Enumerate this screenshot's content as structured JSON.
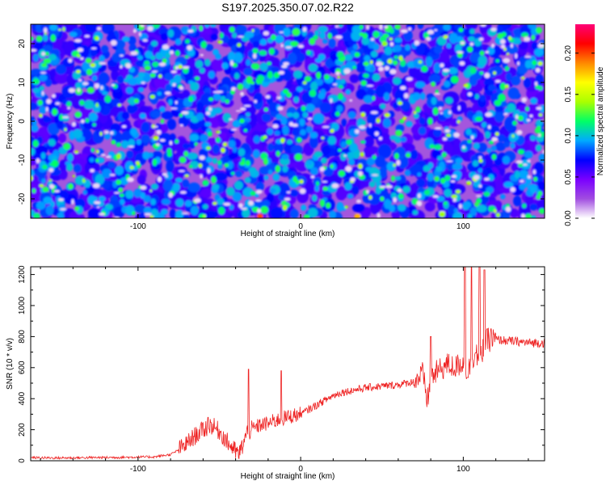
{
  "title": "S197.2025.350.07.02.R22",
  "chart_data": [
    {
      "type": "heatmap",
      "xlabel": "Height of straight line (km)",
      "ylabel": "Frequency (Hz)",
      "xlim": [
        -166,
        150
      ],
      "ylim": [
        -25,
        25
      ],
      "x_ticks": [
        -100,
        0,
        100
      ],
      "y_ticks": [
        -20,
        -10,
        0,
        10,
        20
      ],
      "colorbar": {
        "label": "Normalized spectral amplitude",
        "range": [
          0.0,
          0.235
        ],
        "ticks": [
          "0.00",
          "0.05",
          "0.10",
          "0.15",
          "0.20"
        ],
        "tick_values": [
          0.0,
          0.05,
          0.1,
          0.15,
          0.2
        ],
        "colormap": [
          "#ffffff",
          "#a14ee0",
          "#7a00ff",
          "#0000ff",
          "#00aaff",
          "#00ff66",
          "#aaff00",
          "#ffff00",
          "#ff8800",
          "#ff0000",
          "#ff0077"
        ]
      },
      "hot_spots": [
        {
          "x": -25,
          "y": -24.5,
          "value": 0.2
        },
        {
          "x": 35,
          "y": -24.5,
          "value": 0.18
        },
        {
          "x": 87,
          "y": -24,
          "value": 0.14
        },
        {
          "x": 140,
          "y": -24.5,
          "value": 0.12
        },
        {
          "x": -90,
          "y": 20,
          "value": 0.1
        }
      ]
    },
    {
      "type": "line",
      "xlabel": "Height of straight line (km)",
      "ylabel": "SNR (10 * v/v)",
      "xlim": [
        -166,
        150
      ],
      "ylim": [
        0,
        1250
      ],
      "x_ticks": [
        -100,
        0,
        100
      ],
      "y_ticks": [
        0,
        200,
        400,
        600,
        800,
        1000,
        1200
      ],
      "color": "#ee2222",
      "series": [
        {
          "x": [
            -166,
            -150,
            -130,
            -110,
            -90,
            -80,
            -75,
            -70,
            -65,
            -60,
            -55,
            -50,
            -45,
            -40,
            -38,
            -36,
            -33,
            -30,
            -25,
            -20,
            -15,
            -10,
            -5,
            0,
            5,
            10,
            15,
            20,
            25,
            30,
            40,
            50,
            60,
            70,
            75,
            78,
            80,
            85,
            90,
            95,
            100,
            103,
            105,
            108,
            110,
            112,
            115,
            120,
            130,
            140,
            150
          ],
          "y": [
            20,
            18,
            20,
            22,
            25,
            40,
            70,
            110,
            160,
            200,
            230,
            190,
            120,
            60,
            40,
            90,
            180,
            200,
            230,
            240,
            260,
            275,
            290,
            300,
            330,
            360,
            390,
            420,
            440,
            450,
            470,
            480,
            490,
            510,
            560,
            380,
            540,
            580,
            620,
            600,
            640,
            560,
            660,
            700,
            620,
            720,
            780,
            780,
            770,
            760,
            760
          ]
        }
      ],
      "spikes": [
        {
          "x": -57,
          "y": 280
        },
        {
          "x": -32,
          "y": 590
        },
        {
          "x": -12,
          "y": 580
        },
        {
          "x": 80,
          "y": 800
        },
        {
          "x": 101,
          "y": 1250
        },
        {
          "x": 105,
          "y": 1250
        },
        {
          "x": 110,
          "y": 1250
        },
        {
          "x": 113,
          "y": 1230
        },
        {
          "x": 117,
          "y": 850
        }
      ]
    }
  ]
}
